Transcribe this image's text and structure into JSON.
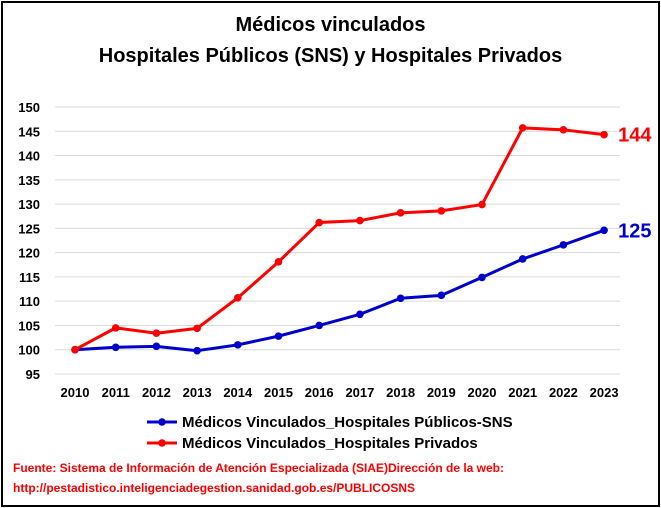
{
  "chart_data": {
    "type": "line",
    "title": "Médicos vinculados",
    "subtitle": "Hospitales Públicos (SNS) y Hospitales Privados",
    "x": [
      "2010",
      "2011",
      "2012",
      "2013",
      "2014",
      "2015",
      "2016",
      "2017",
      "2018",
      "2019",
      "2020",
      "2021",
      "2022",
      "2023"
    ],
    "yticks": [
      "95",
      "100",
      "105",
      "110",
      "115",
      "120",
      "125",
      "130",
      "135",
      "140",
      "145",
      "150"
    ],
    "ylim": [
      95,
      150
    ],
    "grid": true,
    "series": [
      {
        "name": "Médicos Vinculados_Hospitales Públicos-SNS",
        "color": "#0000cc",
        "values": [
          100,
          100.5,
          100.7,
          99.8,
          101.0,
          102.8,
          105.0,
          107.3,
          110.6,
          111.2,
          114.9,
          118.7,
          121.6,
          124.6
        ],
        "end_label": "125"
      },
      {
        "name": "Médicos Vinculados_Hospitales Privados",
        "color": "#ff0000",
        "values": [
          100,
          104.5,
          103.4,
          104.4,
          110.7,
          118.1,
          126.2,
          126.6,
          128.2,
          128.6,
          129.9,
          145.7,
          145.3,
          144.3
        ],
        "end_label": "144"
      }
    ],
    "legend_position": "bottom"
  },
  "source": {
    "line1": "Fuente: Sistema de Información de Atención Especializada (SIAE)Dirección de la web:",
    "line2": "http://pestadistico.inteligenciadegestion.sanidad.gob.es/PUBLICOSNS"
  },
  "colors": {
    "grid": "#d9d9d9",
    "text": "#000000",
    "source_text": "#ff0000"
  }
}
